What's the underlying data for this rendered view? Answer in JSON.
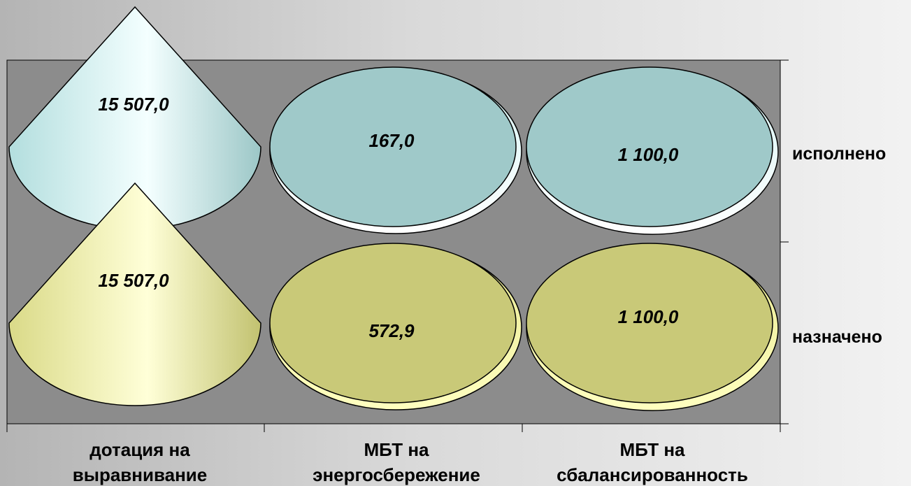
{
  "chart_data": {
    "type": "bar",
    "subtype": "3d-cone",
    "categories": [
      [
        "дотация на",
        "выравнивание"
      ],
      [
        "МБТ на",
        "энергосбережение"
      ],
      [
        "МБТ на",
        "сбалансированность"
      ]
    ],
    "series": [
      {
        "name": "исполнено",
        "values": [
          15507.0,
          167.0,
          1100.0
        ],
        "labels": [
          "15 507,0",
          "167,0",
          "1 100,0"
        ],
        "color": "#9fc9c9"
      },
      {
        "name": "назначено",
        "values": [
          15507.0,
          572.9,
          1100.0
        ],
        "labels": [
          "15 507,0",
          "572,9",
          "1 100,0"
        ],
        "color": "#c9c978"
      }
    ],
    "plot_background": "#8c8c8c",
    "grid": false,
    "legend": "none"
  }
}
